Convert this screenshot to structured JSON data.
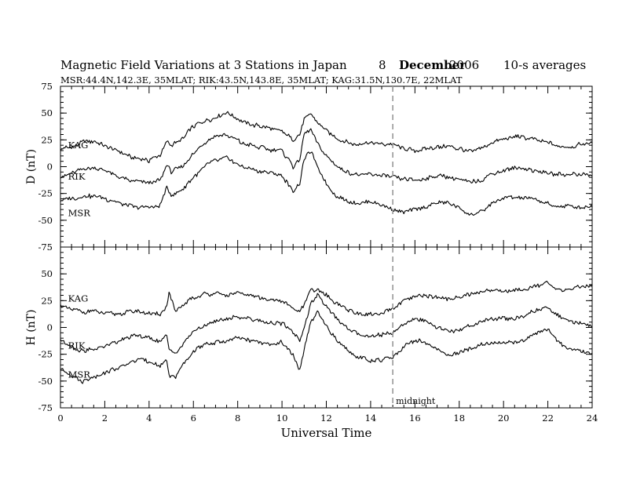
{
  "header": {
    "title": "Magnetic Field Variations at 3 Stations in Japan",
    "day": "8",
    "month": "December",
    "year": "2006",
    "averages": "10-s averages",
    "stations_line": "MSR:44.4N,142.3E, 35MLAT;  RIK:43.5N,143.8E, 35MLAT;  KAG:31.5N,130.7E, 22MLAT"
  },
  "chart_data": [
    {
      "type": "line",
      "panel": "top",
      "ylabel": "D (nT)",
      "xlabel": "",
      "xlim": [
        0,
        24
      ],
      "ylim": [
        -75,
        75
      ],
      "yticks": [
        75,
        50,
        25,
        0,
        -25,
        -50,
        -75
      ],
      "xticks": [],
      "grid": false,
      "series": [
        {
          "name": "KAG",
          "label_pos": [
            0.2,
            20
          ],
          "x": [
            0,
            0.5,
            1,
            1.5,
            2,
            2.5,
            3,
            3.5,
            4,
            4.5,
            4.8,
            5,
            5.5,
            6,
            6.5,
            7,
            7.5,
            8,
            8.5,
            9,
            9.5,
            10,
            10.5,
            10.8,
            11,
            11.3,
            11.6,
            12,
            12.5,
            13,
            13.5,
            14,
            14.5,
            15,
            15.5,
            16,
            16.5,
            17,
            17.5,
            18,
            18.5,
            19,
            19.5,
            20,
            20.5,
            21,
            21.5,
            22,
            22.5,
            23,
            23.5,
            24
          ],
          "y": [
            16,
            19,
            23,
            24,
            20,
            15,
            10,
            7,
            6,
            10,
            24,
            20,
            26,
            38,
            42,
            46,
            50,
            44,
            40,
            38,
            35,
            33,
            25,
            30,
            45,
            50,
            42,
            34,
            26,
            22,
            21,
            22,
            21,
            21,
            17,
            15,
            16,
            18,
            19,
            17,
            14,
            17,
            22,
            26,
            28,
            27,
            25,
            23,
            18,
            19,
            21,
            22
          ]
        },
        {
          "name": "RIK",
          "label_pos": [
            0.2,
            -9
          ],
          "x": [
            0,
            0.5,
            1,
            1.5,
            2,
            2.5,
            3,
            3.5,
            4,
            4.5,
            4.8,
            5,
            5.5,
            6,
            6.5,
            7,
            7.5,
            8,
            8.5,
            9,
            9.5,
            10,
            10.5,
            10.8,
            11,
            11.3,
            11.6,
            12,
            12.5,
            13,
            13.5,
            14,
            14.5,
            15,
            15.5,
            16,
            16.5,
            17,
            17.5,
            18,
            18.5,
            19,
            19.5,
            20,
            20.5,
            21,
            21.5,
            22,
            22.5,
            23,
            23.5,
            24
          ],
          "y": [
            -10,
            -6,
            -2,
            -1,
            -4,
            -8,
            -12,
            -14,
            -15,
            -13,
            2,
            -5,
            0,
            12,
            22,
            28,
            30,
            24,
            20,
            18,
            16,
            15,
            0,
            8,
            30,
            34,
            22,
            10,
            0,
            -6,
            -8,
            -7,
            -8,
            -10,
            -12,
            -13,
            -11,
            -9,
            -9,
            -12,
            -15,
            -12,
            -7,
            -3,
            -1,
            -2,
            -4,
            -6,
            -7,
            -7,
            -7,
            -8
          ]
        },
        {
          "name": "MSR",
          "label_pos": [
            0.2,
            -43
          ],
          "x": [
            0,
            0.5,
            1,
            1.5,
            2,
            2.5,
            3,
            3.5,
            4,
            4.5,
            4.8,
            5,
            5.5,
            6,
            6.5,
            7,
            7.5,
            8,
            8.5,
            9,
            9.5,
            10,
            10.5,
            10.8,
            11,
            11.3,
            11.6,
            12,
            12.5,
            13,
            13.5,
            14,
            14.5,
            15,
            15.5,
            16,
            16.5,
            17,
            17.5,
            18,
            18.5,
            19,
            19.5,
            20,
            20.5,
            21,
            21.5,
            22,
            22.5,
            23,
            23.5,
            24
          ],
          "y": [
            -32,
            -30,
            -28,
            -27,
            -30,
            -33,
            -36,
            -38,
            -38,
            -36,
            -20,
            -27,
            -22,
            -10,
            0,
            6,
            8,
            2,
            -2,
            -4,
            -6,
            -8,
            -24,
            -16,
            8,
            14,
            0,
            -16,
            -28,
            -33,
            -34,
            -33,
            -35,
            -39,
            -42,
            -40,
            -38,
            -34,
            -34,
            -38,
            -45,
            -42,
            -34,
            -30,
            -28,
            -29,
            -31,
            -35,
            -37,
            -37,
            -37,
            -38
          ]
        }
      ]
    },
    {
      "type": "line",
      "panel": "bottom",
      "ylabel": "H (nT)",
      "xlabel": "Universal Time",
      "xlim": [
        0,
        24
      ],
      "ylim": [
        -75,
        75
      ],
      "yticks": [
        50,
        25,
        0,
        -25,
        -50,
        -75
      ],
      "xticks": [
        0,
        2,
        4,
        6,
        8,
        10,
        12,
        14,
        16,
        18,
        20,
        22,
        24
      ],
      "grid": false,
      "vline": {
        "x": 15,
        "label": "midnight"
      },
      "series": [
        {
          "name": "KAG",
          "label_pos": [
            0.2,
            27
          ],
          "x": [
            0,
            0.5,
            1,
            1.5,
            2,
            2.5,
            3,
            3.5,
            4,
            4.5,
            4.8,
            4.9,
            5.2,
            5.5,
            6,
            6.5,
            7,
            7.5,
            8,
            8.5,
            9,
            9.5,
            10,
            10.5,
            10.8,
            11,
            11.3,
            11.6,
            12,
            12.5,
            13,
            13.5,
            14,
            14.5,
            15,
            15.5,
            16,
            16.5,
            17,
            17.5,
            18,
            18.5,
            19,
            19.5,
            20,
            20.5,
            21,
            21.5,
            22,
            22.5,
            23,
            23.5,
            24
          ],
          "y": [
            20,
            17,
            15,
            15,
            13,
            13,
            14,
            15,
            13,
            12,
            20,
            32,
            14,
            20,
            28,
            31,
            32,
            30,
            32,
            30,
            28,
            26,
            25,
            18,
            14,
            22,
            34,
            36,
            30,
            22,
            16,
            13,
            12,
            13,
            18,
            24,
            28,
            30,
            28,
            26,
            28,
            31,
            33,
            35,
            34,
            34,
            36,
            39,
            42,
            34,
            36,
            38,
            40
          ]
        },
        {
          "name": "RIK",
          "label_pos": [
            0.2,
            -17
          ],
          "x": [
            0,
            0.5,
            1,
            1.5,
            2,
            2.5,
            3,
            3.5,
            4,
            4.5,
            4.8,
            4.9,
            5.2,
            5.5,
            6,
            6.5,
            7,
            7.5,
            8,
            8.5,
            9,
            9.5,
            10,
            10.5,
            10.8,
            11,
            11.3,
            11.6,
            12,
            12.5,
            13,
            13.5,
            14,
            14.5,
            15,
            15.5,
            16,
            16.5,
            17,
            17.5,
            18,
            18.5,
            19,
            19.5,
            20,
            20.5,
            21,
            21.5,
            22,
            22.5,
            23,
            23.5,
            24
          ],
          "y": [
            -12,
            -18,
            -22,
            -20,
            -18,
            -14,
            -10,
            -8,
            -10,
            -14,
            -8,
            -20,
            -24,
            -16,
            -4,
            2,
            6,
            8,
            10,
            8,
            6,
            4,
            4,
            -4,
            -12,
            0,
            22,
            30,
            20,
            8,
            -2,
            -6,
            -8,
            -7,
            -5,
            4,
            8,
            6,
            0,
            -4,
            -2,
            2,
            6,
            8,
            8,
            8,
            12,
            16,
            18,
            10,
            6,
            3,
            1
          ]
        },
        {
          "name": "MSR",
          "label_pos": [
            0.2,
            -44
          ],
          "x": [
            0,
            0.5,
            1,
            1.5,
            2,
            2.5,
            3,
            3.5,
            4,
            4.5,
            4.8,
            4.9,
            5.2,
            5.5,
            6,
            6.5,
            7,
            7.5,
            8,
            8.5,
            9,
            9.5,
            10,
            10.5,
            10.8,
            11,
            11.3,
            11.6,
            12,
            12.5,
            13,
            13.5,
            14,
            14.5,
            15,
            15.5,
            16,
            16.5,
            17,
            17.5,
            18,
            18.5,
            19,
            19.5,
            20,
            20.5,
            21,
            21.5,
            22,
            22.5,
            23,
            23.5,
            24
          ],
          "y": [
            -38,
            -44,
            -50,
            -46,
            -42,
            -38,
            -34,
            -30,
            -32,
            -36,
            -30,
            -44,
            -46,
            -36,
            -22,
            -16,
            -14,
            -12,
            -10,
            -12,
            -14,
            -16,
            -14,
            -26,
            -40,
            -20,
            4,
            14,
            2,
            -12,
            -22,
            -28,
            -32,
            -30,
            -28,
            -18,
            -12,
            -14,
            -20,
            -26,
            -24,
            -20,
            -16,
            -14,
            -14,
            -14,
            -10,
            -6,
            -2,
            -14,
            -20,
            -22,
            -24
          ]
        }
      ]
    }
  ]
}
